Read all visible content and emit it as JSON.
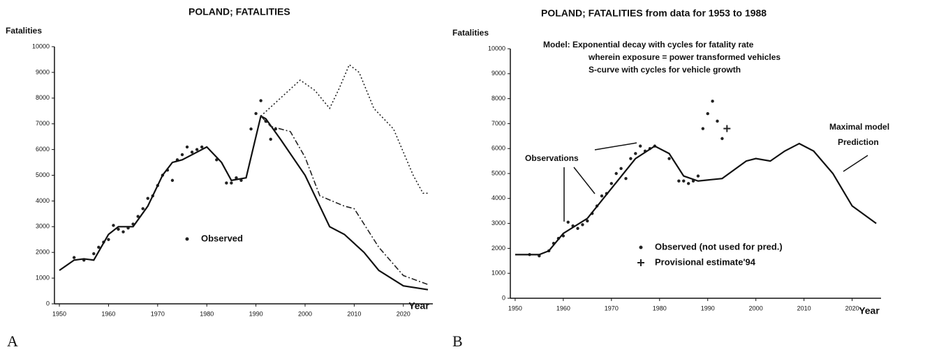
{
  "chart_data": [
    {
      "type": "line",
      "title": "POLAND; FATALITIES",
      "y_label": "Fatalities",
      "x_label": "Year",
      "panel_label": "A",
      "xlim": [
        1949,
        2026
      ],
      "ylim": [
        0,
        10000
      ],
      "xticks": [
        1950,
        1960,
        1970,
        1980,
        1990,
        2000,
        2010,
        2020
      ],
      "yticks": [
        0,
        1000,
        2000,
        3000,
        4000,
        5000,
        6000,
        7000,
        8000,
        9000,
        10000
      ],
      "series": [
        {
          "name": "Observed",
          "style": "points",
          "color": "#222",
          "x": [
            1953,
            1955,
            1957,
            1958,
            1959,
            1960,
            1961,
            1962,
            1963,
            1964,
            1965,
            1966,
            1967,
            1968,
            1969,
            1970,
            1971,
            1972,
            1973,
            1974,
            1975,
            1976,
            1977,
            1978,
            1979,
            1982,
            1984,
            1985,
            1986,
            1987,
            1989,
            1990,
            1991,
            1992,
            1993,
            1994
          ],
          "values": [
            1800,
            1700,
            1950,
            2200,
            2400,
            2500,
            3050,
            2900,
            2800,
            2950,
            3100,
            3400,
            3700,
            4100,
            4200,
            4600,
            5000,
            5200,
            4800,
            5600,
            5800,
            6100,
            5900,
            6000,
            6100,
            5600,
            4700,
            4700,
            4900,
            4800,
            6800,
            7400,
            7900,
            7100,
            6400,
            6800
          ]
        },
        {
          "style": "solid",
          "color": "#111",
          "x": [
            1950,
            1953,
            1955,
            1957,
            1960,
            1962,
            1965,
            1968,
            1971,
            1973,
            1975,
            1978,
            1980,
            1983,
            1985,
            1988,
            1990,
            1991,
            1992,
            1995,
            2000,
            2005,
            2008,
            2012,
            2015,
            2020,
            2025
          ],
          "values": [
            1300,
            1700,
            1750,
            1700,
            2700,
            3000,
            3000,
            3800,
            5000,
            5500,
            5600,
            5900,
            6100,
            5500,
            4800,
            4900,
            6500,
            7300,
            7200,
            6400,
            5000,
            3000,
            2700,
            2000,
            1300,
            700,
            550
          ]
        },
        {
          "style": "dashdot",
          "color": "#222",
          "x": [
            1991,
            1993,
            1997,
            2000,
            2003,
            2008,
            2010,
            2015,
            2020,
            2025
          ],
          "values": [
            7300,
            6900,
            6700,
            5700,
            4200,
            3800,
            3700,
            2200,
            1100,
            750
          ]
        },
        {
          "style": "dotted",
          "color": "#222",
          "x": [
            1991,
            1995,
            1999,
            2002,
            2005,
            2007,
            2009,
            2011,
            2014,
            2018,
            2022,
            2024,
            2025
          ],
          "values": [
            7300,
            8000,
            8700,
            8300,
            7600,
            8400,
            9300,
            9000,
            7600,
            6800,
            5000,
            4300,
            4300
          ]
        }
      ],
      "annotations": []
    },
    {
      "type": "line",
      "title": "POLAND; FATALITIES from data for 1953 to 1988",
      "y_label": "Fatalities",
      "x_label": "Year",
      "panel_label": "B",
      "xlim": [
        1949,
        2026
      ],
      "ylim": [
        0,
        10000
      ],
      "xticks": [
        1950,
        1960,
        1970,
        1980,
        1990,
        2000,
        2010,
        2020
      ],
      "yticks": [
        0,
        1000,
        2000,
        3000,
        4000,
        5000,
        6000,
        7000,
        8000,
        9000,
        10000
      ],
      "series": [
        {
          "name": "Observed (not used for pred.)",
          "style": "points",
          "color": "#222",
          "x": [
            1953,
            1955,
            1957,
            1958,
            1959,
            1960,
            1961,
            1962,
            1963,
            1964,
            1965,
            1966,
            1967,
            1968,
            1969,
            1970,
            1971,
            1972,
            1973,
            1974,
            1975,
            1976,
            1977,
            1978,
            1979,
            1982,
            1984,
            1985,
            1986,
            1987,
            1988,
            1989,
            1990,
            1991,
            1992,
            1993
          ],
          "values": [
            1750,
            1700,
            1900,
            2200,
            2400,
            2500,
            3050,
            2900,
            2800,
            2950,
            3100,
            3400,
            3700,
            4100,
            4200,
            4600,
            5000,
            5200,
            4800,
            5600,
            5800,
            6100,
            5900,
            6000,
            6100,
            5600,
            4700,
            4700,
            4600,
            4700,
            4900,
            6800,
            7400,
            7900,
            7100,
            6400
          ]
        },
        {
          "name": "Provisional estimate'94",
          "style": "plus",
          "color": "#222",
          "x": [
            1994
          ],
          "values": [
            6800
          ]
        },
        {
          "style": "solid",
          "color": "#111",
          "x": [
            1950,
            1955,
            1957,
            1960,
            1965,
            1970,
            1975,
            1979,
            1982,
            1985,
            1988,
            1993,
            1998,
            2000,
            2003,
            2006,
            2009,
            2012,
            2016,
            2020,
            2025
          ],
          "values": [
            1750,
            1750,
            1900,
            2600,
            3200,
            4400,
            5600,
            6100,
            5800,
            4900,
            4700,
            4800,
            5500,
            5600,
            5500,
            5900,
            6200,
            5900,
            5000,
            3700,
            3000
          ]
        }
      ],
      "annotations": [
        "Model: Exponential decay with cycles for fatality rate",
        "wherein exposure = power transformed vehicles",
        "S-curve with cycles for vehicle growth",
        "Observations",
        "Maximal model",
        "Prediction"
      ]
    }
  ]
}
